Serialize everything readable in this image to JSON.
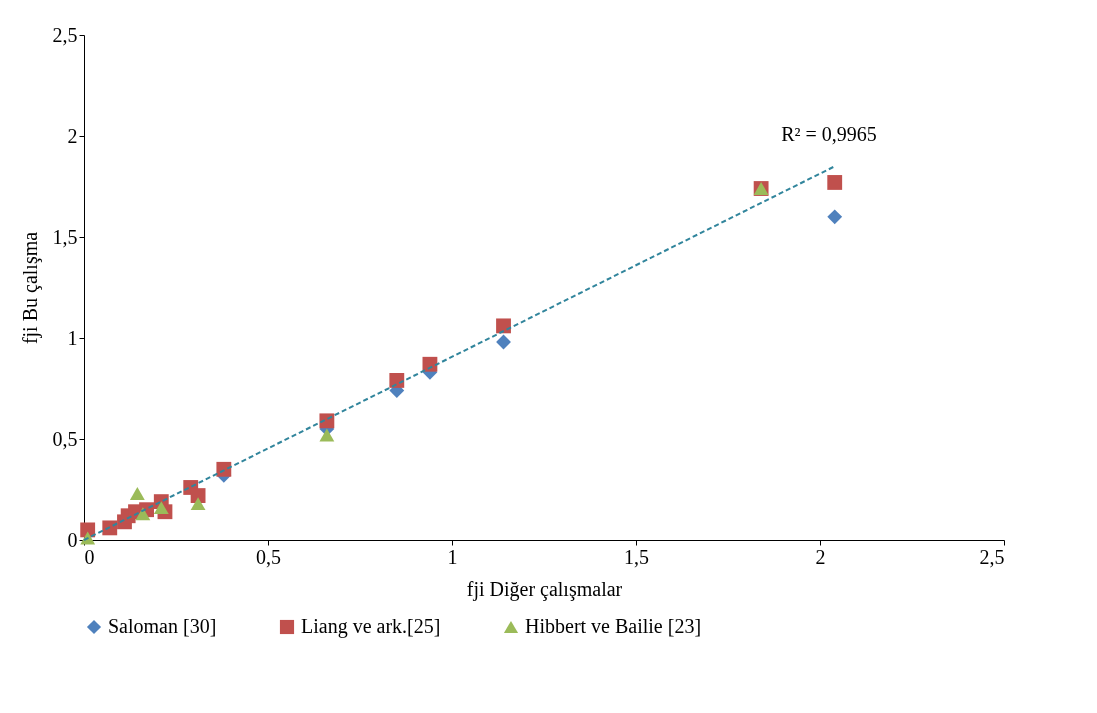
{
  "chart_data": {
    "type": "scatter",
    "xlabel": "fji Diğer çalışmalar",
    "ylabel": "fji  Bu çalışma",
    "xlim": [
      0,
      2.5
    ],
    "ylim": [
      0,
      2.5
    ],
    "xticks": [
      0,
      {
        "value": 0.5,
        "label": "0,5"
      },
      1,
      {
        "value": 1.5,
        "label": "1,5"
      },
      2,
      {
        "value": 2.5,
        "label": "2,5"
      }
    ],
    "yticks": [
      0,
      {
        "value": 0.5,
        "label": "0,5"
      },
      1,
      {
        "value": 1.5,
        "label": "1,5"
      },
      2,
      {
        "value": 2.5,
        "label": "2,5"
      }
    ],
    "grid": false,
    "legend": "bottom",
    "series": [
      {
        "name": "Saloman [30]",
        "color": "#4f81bd",
        "marker": "diamond",
        "x": [
          0.38,
          0.66,
          0.85,
          0.94,
          1.14,
          2.04
        ],
        "values": [
          0.32,
          0.55,
          0.74,
          0.83,
          0.98,
          1.6
        ]
      },
      {
        "name": "Liang ve ark.[25]",
        "color": "#c0504d",
        "marker": "square",
        "x": [
          0.01,
          0.07,
          0.11,
          0.12,
          0.14,
          0.17,
          0.21,
          0.22,
          0.29,
          0.31,
          0.38,
          0.66,
          0.85,
          0.94,
          1.14,
          1.84,
          2.04
        ],
        "values": [
          0.05,
          0.06,
          0.09,
          0.12,
          0.14,
          0.15,
          0.19,
          0.14,
          0.26,
          0.22,
          0.35,
          0.59,
          0.79,
          0.87,
          1.06,
          1.74,
          1.77
        ]
      },
      {
        "name": "Hibbert ve Bailie [23]",
        "color": "#9bbb59",
        "marker": "triangle",
        "x": [
          0.01,
          0.145,
          0.16,
          0.21,
          0.31,
          0.66,
          1.84
        ],
        "values": [
          0.01,
          0.23,
          0.13,
          0.16,
          0.18,
          0.52,
          1.74
        ]
      },
      {
        "type": "line",
        "color": "#31859c",
        "line_style": "dashed",
        "x": [
          0.0,
          2.04
        ],
        "values": [
          0.0,
          1.85
        ]
      }
    ],
    "annotations": [
      "R² = 0,9965"
    ]
  }
}
